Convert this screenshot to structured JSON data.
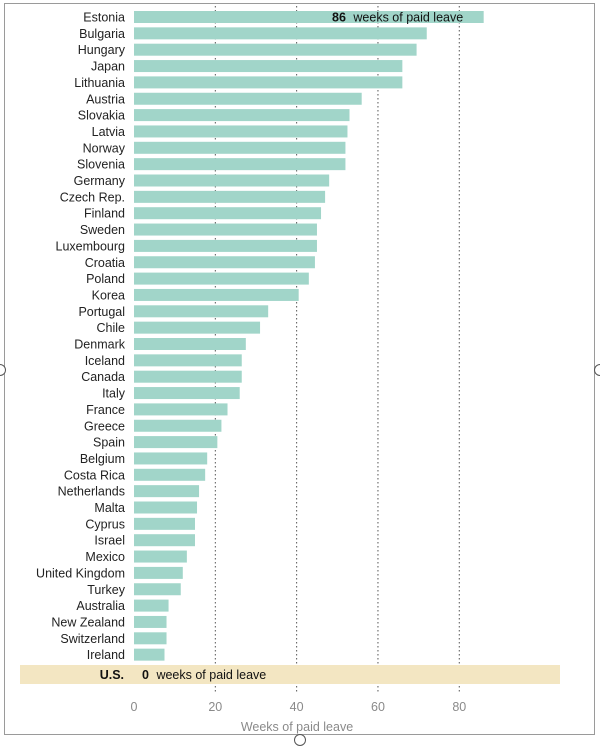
{
  "chart_data": {
    "type": "bar",
    "orientation": "horizontal",
    "categories": [
      "Estonia",
      "Bulgaria",
      "Hungary",
      "Japan",
      "Lithuania",
      "Austria",
      "Slovakia",
      "Latvia",
      "Norway",
      "Slovenia",
      "Germany",
      "Czech Rep.",
      "Finland",
      "Sweden",
      "Luxembourg",
      "Croatia",
      "Poland",
      "Korea",
      "Portugal",
      "Chile",
      "Denmark",
      "Iceland",
      "Canada",
      "Italy",
      "France",
      "Greece",
      "Spain",
      "Belgium",
      "Costa Rica",
      "Netherlands",
      "Malta",
      "Cyprus",
      "Israel",
      "Mexico",
      "United Kingdom",
      "Turkey",
      "Australia",
      "New Zealand",
      "Switzerland",
      "Ireland"
    ],
    "values": [
      86,
      72,
      69.5,
      66,
      66,
      56,
      53,
      52.5,
      52,
      52,
      48,
      47,
      46,
      45,
      45,
      44.5,
      43,
      40.5,
      33,
      31,
      27.5,
      26.5,
      26.5,
      26,
      23,
      21.5,
      20.5,
      18,
      17.5,
      16,
      15.5,
      15,
      15,
      13,
      12,
      11.5,
      8.5,
      8,
      8,
      7.5
    ],
    "highlight": {
      "category": "U.S.",
      "value": 0,
      "label_value": "0",
      "label_suffix": "weeks of paid leave",
      "color": "#f3e6c2"
    },
    "top_annotation": {
      "value": "86",
      "suffix": "weeks of paid leave"
    },
    "xlabel": "Weeks of paid leave",
    "xticks": [
      0,
      20,
      40,
      60,
      80
    ],
    "xlim": [
      0,
      105
    ],
    "grid": "vertical dotted lines at 20, 40, 60, 80",
    "bar_color": "#a1d5c9"
  }
}
